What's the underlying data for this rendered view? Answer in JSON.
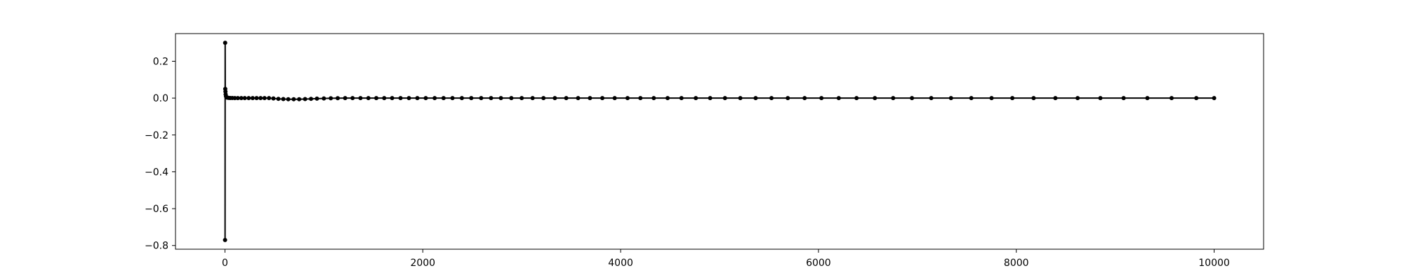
{
  "chart_data": {
    "type": "line",
    "title": "",
    "xlabel": "",
    "ylabel": "",
    "xlim": [
      -500,
      10500
    ],
    "ylim": [
      -0.82,
      0.35
    ],
    "grid": false,
    "legend": "none",
    "color": "#000000",
    "xticks": [
      0,
      2000,
      4000,
      6000,
      8000,
      10000
    ],
    "xtick_labels": [
      "0",
      "2000",
      "4000",
      "6000",
      "8000",
      "10000"
    ],
    "yticks": [
      0.2,
      0.0,
      -0.2,
      -0.4,
      -0.6,
      -0.8
    ],
    "ytick_labels": [
      "0.2",
      "0.0",
      "−0.2",
      "−0.4",
      "−0.6",
      "−0.8"
    ],
    "series": [
      {
        "x": [
          1,
          2,
          3,
          5,
          7,
          10,
          15,
          20,
          30,
          40,
          55,
          75,
          100,
          130,
          165,
          200,
          240,
          280,
          320,
          360,
          400,
          445,
          490,
          540,
          590,
          640,
          695,
          750,
          810,
          870,
          930,
          1000,
          1070,
          1140,
          1215,
          1290,
          1370,
          1450,
          1530,
          1610,
          1690,
          1775,
          1860,
          1945,
          2030,
          2120,
          2210,
          2300,
          2395,
          2490,
          2590,
          2690,
          2790,
          2895,
          3000,
          3110,
          3220,
          3335,
          3450,
          3570,
          3690,
          3815,
          3940,
          4070,
          4200,
          4335,
          4475,
          4615,
          4760,
          4905,
          5055,
          5210,
          5365,
          5525,
          5690,
          5860,
          6030,
          6205,
          6385,
          6570,
          6755,
          6945,
          7140,
          7340,
          7545,
          7750,
          7960,
          8175,
          8395,
          8620,
          8850,
          9085,
          9325,
          9570,
          9820,
          10000
        ],
        "y": [
          -0.77,
          0.3,
          0.05,
          0.035,
          0.02,
          0.01,
          0.005,
          0.003,
          0.002,
          0.001,
          0.0005,
          0.0003,
          0.0002,
          0.0001,
          0.0,
          0.0,
          0.0,
          0.0,
          0.0,
          0.0,
          0.0,
          0.0,
          -0.002,
          -0.004,
          -0.005,
          -0.006,
          -0.006,
          -0.006,
          -0.005,
          -0.004,
          -0.003,
          -0.002,
          -0.001,
          -0.0005,
          0.0,
          0.0,
          0.0,
          0.0,
          0.0,
          0.0,
          0.0,
          0.0,
          0.0,
          0.0,
          0.0,
          0.0,
          0.0,
          0.0,
          0.0,
          0.0,
          0.0,
          0.0,
          0.0,
          0.0,
          0.0,
          0.0,
          0.0,
          0.0,
          0.0,
          0.0,
          0.0,
          0.0,
          0.0,
          0.0,
          0.0,
          0.0,
          0.0,
          0.0,
          0.0,
          0.0,
          0.0,
          0.0,
          0.0,
          0.0,
          0.0,
          0.0,
          0.0,
          0.0,
          0.0,
          0.0,
          0.0,
          0.0,
          0.0,
          0.0,
          0.0,
          0.0,
          0.0,
          0.0,
          0.0,
          0.0,
          0.0,
          0.0,
          0.0,
          0.0,
          0.0,
          0.0
        ]
      }
    ]
  }
}
